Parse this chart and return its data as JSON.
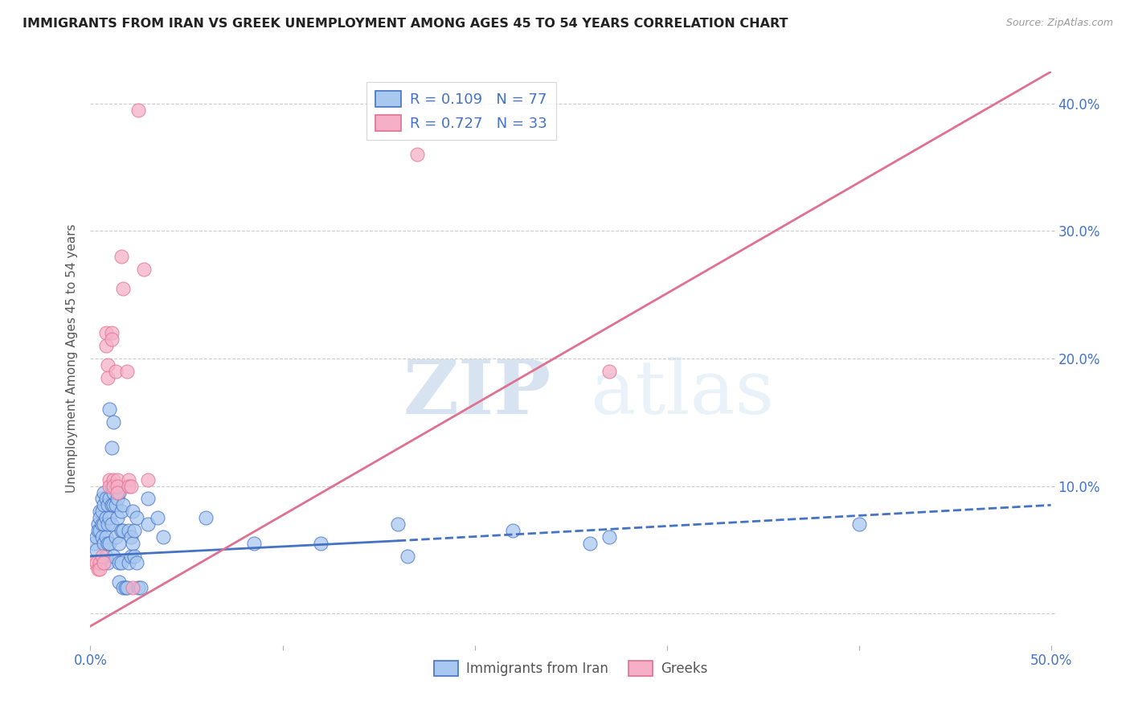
{
  "title": "IMMIGRANTS FROM IRAN VS GREEK UNEMPLOYMENT AMONG AGES 45 TO 54 YEARS CORRELATION CHART",
  "source": "Source: ZipAtlas.com",
  "xlabel": "",
  "ylabel": "Unemployment Among Ages 45 to 54 years",
  "xlim": [
    0.0,
    0.5
  ],
  "ylim": [
    -0.025,
    0.425
  ],
  "xticks": [
    0.0,
    0.1,
    0.2,
    0.3,
    0.4,
    0.5
  ],
  "yticks": [
    0.0,
    0.1,
    0.2,
    0.3,
    0.4
  ],
  "ytick_labels_right": [
    "",
    "10.0%",
    "20.0%",
    "30.0%",
    "40.0%"
  ],
  "xtick_labels": [
    "0.0%",
    "",
    "",
    "",
    "",
    "50.0%"
  ],
  "watermark_zip": "ZIP",
  "watermark_atlas": "atlas",
  "legend_blue_r": "R = 0.109",
  "legend_blue_n": "N = 77",
  "legend_pink_r": "R = 0.727",
  "legend_pink_n": "N = 33",
  "blue_color": "#A8C8F0",
  "pink_color": "#F5B0C8",
  "blue_line_color": "#4472C4",
  "pink_line_color": "#E07090",
  "blue_scatter": [
    [
      0.002,
      0.055
    ],
    [
      0.003,
      0.06
    ],
    [
      0.003,
      0.05
    ],
    [
      0.004,
      0.07
    ],
    [
      0.004,
      0.065
    ],
    [
      0.005,
      0.08
    ],
    [
      0.005,
      0.075
    ],
    [
      0.005,
      0.065
    ],
    [
      0.006,
      0.09
    ],
    [
      0.006,
      0.08
    ],
    [
      0.006,
      0.07
    ],
    [
      0.006,
      0.06
    ],
    [
      0.007,
      0.095
    ],
    [
      0.007,
      0.085
    ],
    [
      0.007,
      0.07
    ],
    [
      0.007,
      0.055
    ],
    [
      0.008,
      0.09
    ],
    [
      0.008,
      0.075
    ],
    [
      0.008,
      0.06
    ],
    [
      0.008,
      0.045
    ],
    [
      0.009,
      0.085
    ],
    [
      0.009,
      0.07
    ],
    [
      0.009,
      0.055
    ],
    [
      0.009,
      0.04
    ],
    [
      0.01,
      0.16
    ],
    [
      0.01,
      0.09
    ],
    [
      0.01,
      0.075
    ],
    [
      0.01,
      0.055
    ],
    [
      0.011,
      0.13
    ],
    [
      0.011,
      0.1
    ],
    [
      0.011,
      0.085
    ],
    [
      0.011,
      0.07
    ],
    [
      0.012,
      0.15
    ],
    [
      0.012,
      0.095
    ],
    [
      0.012,
      0.085
    ],
    [
      0.012,
      0.045
    ],
    [
      0.013,
      0.085
    ],
    [
      0.013,
      0.06
    ],
    [
      0.014,
      0.09
    ],
    [
      0.014,
      0.075
    ],
    [
      0.015,
      0.095
    ],
    [
      0.015,
      0.055
    ],
    [
      0.015,
      0.04
    ],
    [
      0.015,
      0.025
    ],
    [
      0.016,
      0.08
    ],
    [
      0.016,
      0.065
    ],
    [
      0.016,
      0.04
    ],
    [
      0.017,
      0.085
    ],
    [
      0.017,
      0.065
    ],
    [
      0.017,
      0.02
    ],
    [
      0.018,
      0.02
    ],
    [
      0.019,
      0.02
    ],
    [
      0.02,
      0.065
    ],
    [
      0.02,
      0.04
    ],
    [
      0.021,
      0.06
    ],
    [
      0.021,
      0.045
    ],
    [
      0.022,
      0.08
    ],
    [
      0.022,
      0.055
    ],
    [
      0.023,
      0.065
    ],
    [
      0.023,
      0.045
    ],
    [
      0.024,
      0.075
    ],
    [
      0.024,
      0.04
    ],
    [
      0.025,
      0.02
    ],
    [
      0.026,
      0.02
    ],
    [
      0.03,
      0.09
    ],
    [
      0.03,
      0.07
    ],
    [
      0.035,
      0.075
    ],
    [
      0.038,
      0.06
    ],
    [
      0.06,
      0.075
    ],
    [
      0.085,
      0.055
    ],
    [
      0.12,
      0.055
    ],
    [
      0.16,
      0.07
    ],
    [
      0.165,
      0.045
    ],
    [
      0.22,
      0.065
    ],
    [
      0.26,
      0.055
    ],
    [
      0.27,
      0.06
    ],
    [
      0.4,
      0.07
    ]
  ],
  "pink_scatter": [
    [
      0.002,
      0.04
    ],
    [
      0.003,
      0.04
    ],
    [
      0.004,
      0.035
    ],
    [
      0.005,
      0.04
    ],
    [
      0.005,
      0.035
    ],
    [
      0.006,
      0.045
    ],
    [
      0.007,
      0.04
    ],
    [
      0.008,
      0.22
    ],
    [
      0.008,
      0.21
    ],
    [
      0.009,
      0.195
    ],
    [
      0.009,
      0.185
    ],
    [
      0.01,
      0.105
    ],
    [
      0.01,
      0.1
    ],
    [
      0.011,
      0.22
    ],
    [
      0.011,
      0.215
    ],
    [
      0.012,
      0.105
    ],
    [
      0.012,
      0.1
    ],
    [
      0.013,
      0.19
    ],
    [
      0.014,
      0.105
    ],
    [
      0.014,
      0.1
    ],
    [
      0.014,
      0.095
    ],
    [
      0.016,
      0.28
    ],
    [
      0.017,
      0.255
    ],
    [
      0.019,
      0.19
    ],
    [
      0.02,
      0.105
    ],
    [
      0.02,
      0.1
    ],
    [
      0.021,
      0.1
    ],
    [
      0.022,
      0.02
    ],
    [
      0.025,
      0.395
    ],
    [
      0.028,
      0.27
    ],
    [
      0.03,
      0.105
    ],
    [
      0.17,
      0.36
    ],
    [
      0.27,
      0.19
    ]
  ],
  "blue_trend_solid": [
    0.0,
    0.16,
    0.045,
    0.057
  ],
  "blue_trend_dashed": [
    0.16,
    0.5,
    0.057,
    0.085
  ],
  "pink_trend": [
    0.0,
    0.5,
    -0.01,
    0.425
  ]
}
